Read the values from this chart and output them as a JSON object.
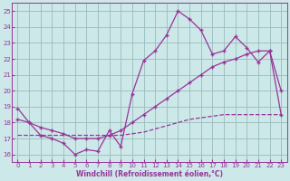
{
  "title": "Windchill (Refroidissement éolien,°C)",
  "bg_color": "#cce8e8",
  "line_color": "#993399",
  "grid_color": "#99bbbb",
  "xlim": [
    -0.5,
    23.5
  ],
  "ylim": [
    15.5,
    25.5
  ],
  "xticks": [
    0,
    1,
    2,
    3,
    4,
    5,
    6,
    7,
    8,
    9,
    10,
    11,
    12,
    13,
    14,
    15,
    16,
    17,
    18,
    19,
    20,
    21,
    22,
    23
  ],
  "yticks": [
    16,
    17,
    18,
    19,
    20,
    21,
    22,
    23,
    24,
    25
  ],
  "curve_top_x": [
    0,
    1,
    2,
    3,
    4,
    5,
    6,
    7,
    8,
    9,
    10,
    11,
    12,
    13,
    14,
    15,
    16,
    17,
    18,
    19,
    20,
    21,
    22,
    23
  ],
  "curve_top_y": [
    18.9,
    18.0,
    17.2,
    17.0,
    16.7,
    16.0,
    16.3,
    16.2,
    17.5,
    16.5,
    19.8,
    21.9,
    22.5,
    23.5,
    25.0,
    24.5,
    23.8,
    22.3,
    22.5,
    23.4,
    22.7,
    21.8,
    22.5,
    20.0
  ],
  "curve_mid_x": [
    0,
    1,
    2,
    3,
    4,
    5,
    6,
    7,
    8,
    9,
    10,
    11,
    12,
    13,
    14,
    15,
    16,
    17,
    18,
    19,
    20,
    21,
    22,
    23
  ],
  "curve_mid_y": [
    18.2,
    18.0,
    17.7,
    17.5,
    17.3,
    17.0,
    17.0,
    17.0,
    17.2,
    17.5,
    18.0,
    18.5,
    19.0,
    19.5,
    20.0,
    20.5,
    21.0,
    21.5,
    21.8,
    22.0,
    22.3,
    22.5,
    22.5,
    18.5
  ],
  "curve_bot_x": [
    0,
    1,
    2,
    3,
    4,
    5,
    6,
    7,
    8,
    9,
    10,
    11,
    12,
    13,
    14,
    15,
    16,
    17,
    18,
    19,
    20,
    21,
    22,
    23
  ],
  "curve_bot_y": [
    17.2,
    17.2,
    17.2,
    17.2,
    17.2,
    17.2,
    17.2,
    17.2,
    17.2,
    17.2,
    17.3,
    17.4,
    17.6,
    17.8,
    18.0,
    18.2,
    18.3,
    18.4,
    18.5,
    18.5,
    18.5,
    18.5,
    18.5,
    18.5
  ]
}
